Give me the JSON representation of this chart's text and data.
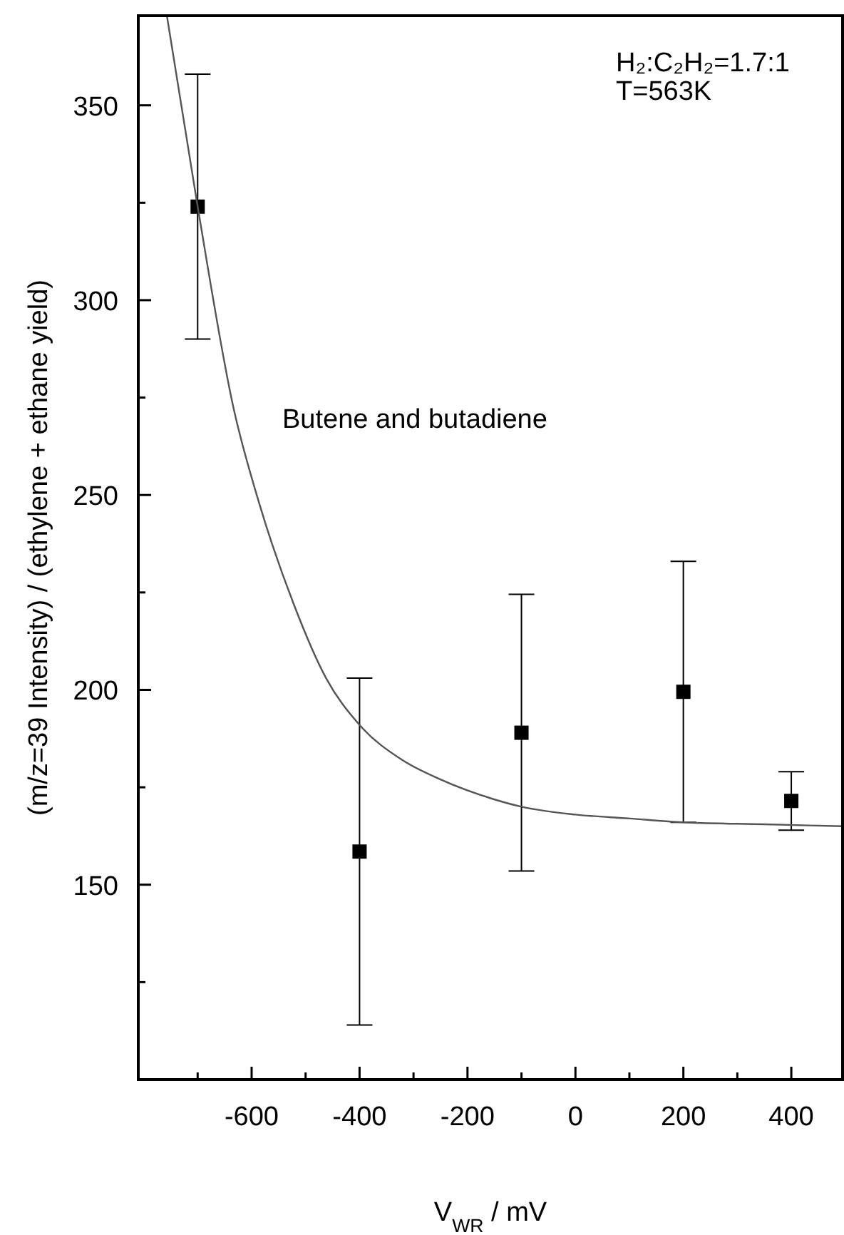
{
  "chart_data": {
    "type": "scatter",
    "xlabel": "V$_{WR}$ / mV",
    "ylabel": "(m/z=39 Intensity) / (ethylene + ethane yield)",
    "annotations": [
      "H₂:C₂H₂=1.7:1",
      "T=563K",
      "Butene and butadiene"
    ],
    "xlim": [
      -810,
      495
    ],
    "ylim": [
      100,
      373
    ],
    "xticks": [
      {
        "value": -700,
        "label": null
      },
      -600,
      {
        "value": -500,
        "label": null
      },
      -400,
      {
        "value": -300,
        "label": null
      },
      -200,
      {
        "value": -100,
        "label": null
      },
      0,
      {
        "value": 100,
        "label": null
      },
      200,
      {
        "value": 300,
        "label": null
      },
      400
    ],
    "yticks": [
      {
        "value": 125,
        "label": null
      },
      150,
      {
        "value": 175,
        "label": null
      },
      200,
      {
        "value": 225,
        "label": null
      },
      250,
      {
        "value": 275,
        "label": null
      },
      300,
      {
        "value": 325,
        "label": null
      },
      350
    ],
    "grid": false,
    "series": [
      {
        "type": "scatter",
        "color": "#000000",
        "marker": "square",
        "x": [
          -700,
          -400,
          -100,
          200,
          400
        ],
        "values": [
          324,
          158.5,
          189,
          199.5,
          171.5
        ],
        "errors": [
          34,
          44.5,
          35.5,
          33.5,
          7.5
        ]
      },
      {
        "type": "line",
        "color": "#555555",
        "line_style": "solid",
        "x": [
          -757,
          -700,
          -633,
          -584,
          -522,
          -462,
          -400,
          -321,
          -250,
          -153,
          -100,
          0,
          100,
          200,
          350,
          495
        ],
        "values": [
          373,
          324,
          272,
          247,
          222,
          203,
          191,
          182,
          177,
          172,
          170,
          168,
          167,
          166,
          165.5,
          165
        ]
      }
    ]
  }
}
